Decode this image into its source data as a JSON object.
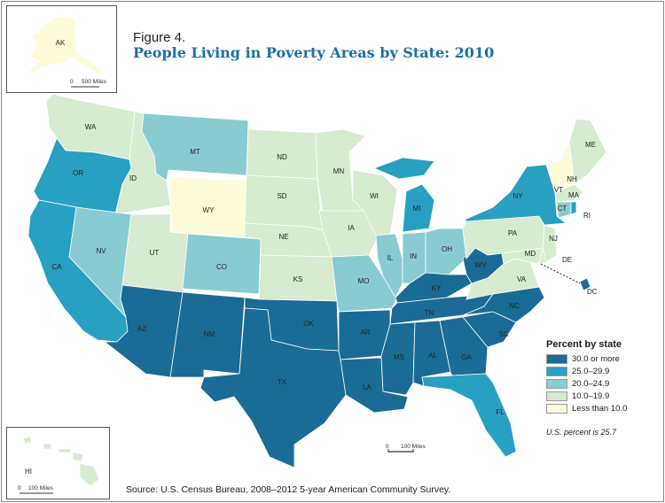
{
  "figure": {
    "label": "Figure 4.",
    "title": "People Living in Poverty Areas by State: 2010"
  },
  "colors": {
    "30+": "#1a6b95",
    "25-29.9": "#27a0c2",
    "20-24.9": "#88ccd2",
    "10-19.9": "#d6ebd0",
    "lt10": "#fdfbd8"
  },
  "legend": {
    "title": "Percent by state",
    "items": [
      {
        "label": "30.0 or more",
        "color": "#1a6b95"
      },
      {
        "label": "25.0–29.9",
        "color": "#27a0c2"
      },
      {
        "label": "20.0–24.9",
        "color": "#88ccd2"
      },
      {
        "label": "10.0–19.9",
        "color": "#d6ebd0"
      },
      {
        "label": "Less than 10.0",
        "color": "#fdfbd8"
      }
    ]
  },
  "us_note": "U.S. percent is 25.7",
  "scales": {
    "alaska": {
      "zero": "0",
      "distance": "500 Miles"
    },
    "hawaii": {
      "zero": "0",
      "distance": "100 Miles"
    },
    "mainland": {
      "zero": "0",
      "distance": "100 Miles"
    }
  },
  "source": "Source: U.S. Census Bureau, 2008–2012 5-year American Community Survey.",
  "states": {
    "AK": {
      "category": "lt10"
    },
    "HI": {
      "category": "10-19.9"
    },
    "WA": {
      "category": "10-19.9"
    },
    "OR": {
      "category": "25-29.9"
    },
    "CA": {
      "category": "25-29.9"
    },
    "ID": {
      "category": "10-19.9"
    },
    "NV": {
      "category": "20-24.9"
    },
    "MT": {
      "category": "20-24.9"
    },
    "WY": {
      "category": "lt10"
    },
    "UT": {
      "category": "10-19.9"
    },
    "CO": {
      "category": "20-24.9"
    },
    "AZ": {
      "category": "30+"
    },
    "NM": {
      "category": "30+"
    },
    "ND": {
      "category": "10-19.9"
    },
    "SD": {
      "category": "10-19.9"
    },
    "NE": {
      "category": "10-19.9"
    },
    "KS": {
      "category": "10-19.9"
    },
    "OK": {
      "category": "30+"
    },
    "TX": {
      "category": "30+"
    },
    "MN": {
      "category": "10-19.9"
    },
    "IA": {
      "category": "10-19.9"
    },
    "MO": {
      "category": "20-24.9"
    },
    "AR": {
      "category": "30+"
    },
    "LA": {
      "category": "30+"
    },
    "WI": {
      "category": "10-19.9"
    },
    "IL": {
      "category": "20-24.9"
    },
    "MI": {
      "category": "25-29.9"
    },
    "IN": {
      "category": "20-24.9"
    },
    "OH": {
      "category": "20-24.9"
    },
    "KY": {
      "category": "30+"
    },
    "TN": {
      "category": "30+"
    },
    "MS": {
      "category": "30+"
    },
    "AL": {
      "category": "30+"
    },
    "GA": {
      "category": "30+"
    },
    "FL": {
      "category": "25-29.9"
    },
    "SC": {
      "category": "30+"
    },
    "NC": {
      "category": "30+"
    },
    "WV": {
      "category": "30+"
    },
    "VA": {
      "category": "10-19.9"
    },
    "PA": {
      "category": "10-19.9"
    },
    "NY": {
      "category": "25-29.9"
    },
    "VT": {
      "category": "lt10"
    },
    "NH": {
      "category": "lt10"
    },
    "ME": {
      "category": "10-19.9"
    },
    "MA": {
      "category": "10-19.9"
    },
    "CT": {
      "category": "20-24.9"
    },
    "RI": {
      "category": "25-29.9"
    },
    "NJ": {
      "category": "10-19.9"
    },
    "DE": {
      "category": "10-19.9"
    },
    "MD": {
      "category": "10-19.9"
    },
    "DC": {
      "category": "30+"
    }
  }
}
